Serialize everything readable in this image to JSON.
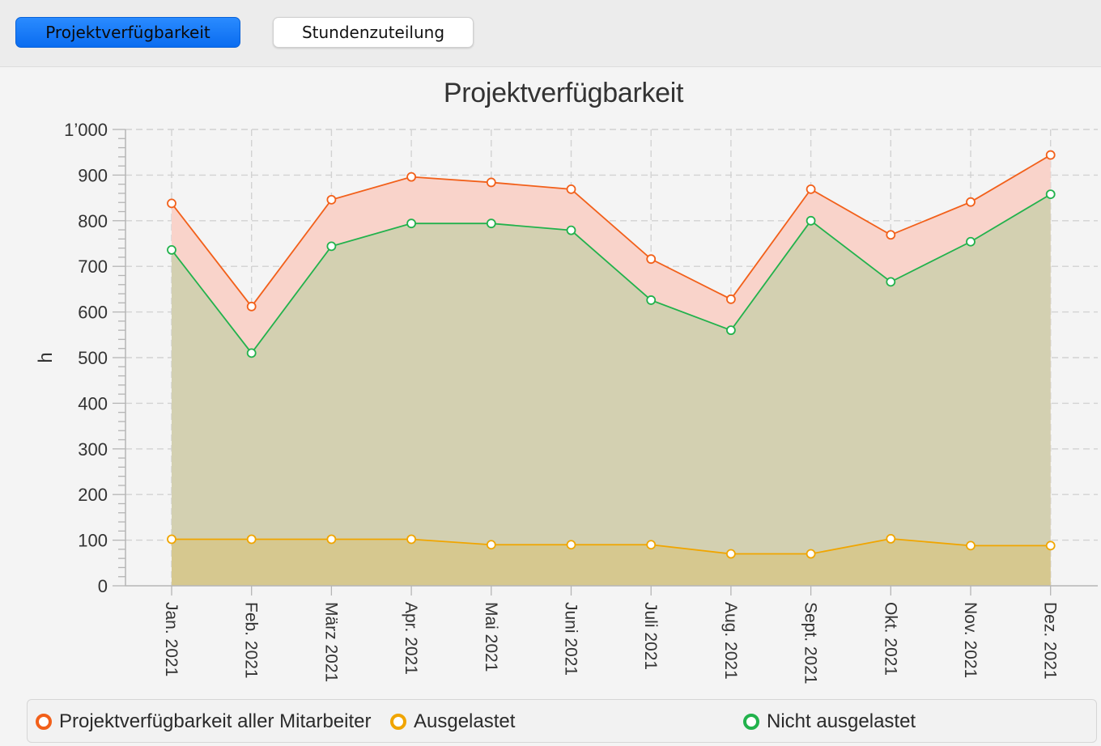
{
  "tabs": [
    {
      "label": "Projektverfügbarkeit",
      "active": true
    },
    {
      "label": "Stundenzuteilung",
      "active": false
    }
  ],
  "chart_data": {
    "type": "area",
    "title": "Projektverfügbarkeit",
    "xlabel": "",
    "ylabel": "h",
    "ylim": [
      0,
      1000
    ],
    "yticks": [
      0,
      100,
      200,
      300,
      400,
      500,
      600,
      700,
      800,
      900,
      1000
    ],
    "ytick_labels": [
      "0",
      "100",
      "200",
      "300",
      "400",
      "500",
      "600",
      "700",
      "800",
      "900",
      "1’000"
    ],
    "grid": true,
    "legend_position": "bottom",
    "categories": [
      "Jan. 2021",
      "Feb. 2021",
      "März 2021",
      "Apr. 2021",
      "Mai 2021",
      "Juni 2021",
      "Juli 2021",
      "Aug. 2021",
      "Sept. 2021",
      "Okt. 2021",
      "Nov. 2021",
      "Dez. 2021"
    ],
    "series": [
      {
        "name": "Projektverfügbarkeit aller Mitarbeiter",
        "color": "#f2601a",
        "fill": "#f9d3ca",
        "values": [
          838,
          612,
          846,
          896,
          884,
          869,
          716,
          628,
          869,
          769,
          841,
          944
        ]
      },
      {
        "name": "Nicht ausgelastet",
        "color": "#22b24c",
        "fill": "#d3d0b1",
        "values": [
          736,
          510,
          744,
          794,
          794,
          779,
          626,
          560,
          800,
          666,
          754,
          858
        ]
      },
      {
        "name": "Ausgelastet",
        "color": "#f0a500",
        "fill": "#d6c88f",
        "values": [
          102,
          102,
          102,
          102,
          90,
          90,
          90,
          70,
          70,
          103,
          88,
          88
        ]
      }
    ],
    "legend": [
      {
        "name": "Projektverfügbarkeit aller Mitarbeiter",
        "color": "#f2601a"
      },
      {
        "name": "Ausgelastet",
        "color": "#f0a500"
      },
      {
        "name": "Nicht ausgelastet",
        "color": "#22b24c"
      }
    ]
  }
}
